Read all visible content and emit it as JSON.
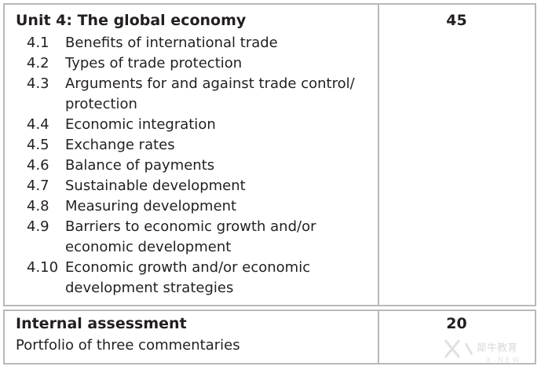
{
  "unit": {
    "title": "Unit 4: The global economy",
    "marks": "45"
  },
  "topics": [
    {
      "num": "4.1",
      "lines": [
        "Benefits of international trade"
      ]
    },
    {
      "num": "4.2",
      "lines": [
        "Types of trade protection"
      ]
    },
    {
      "num": "4.3",
      "lines": [
        "Arguments for and against trade control/",
        "protection"
      ]
    },
    {
      "num": "4.4",
      "lines": [
        "Economic integration"
      ]
    },
    {
      "num": "4.5",
      "lines": [
        "Exchange rates"
      ]
    },
    {
      "num": "4.6",
      "lines": [
        "Balance of payments"
      ]
    },
    {
      "num": "4.7",
      "lines": [
        "Sustainable development"
      ]
    },
    {
      "num": "4.8",
      "lines": [
        "Measuring development"
      ]
    },
    {
      "num": "4.9",
      "lines": [
        "Barriers to economic growth and/or",
        "economic development"
      ]
    },
    {
      "num": "4.10",
      "lines": [
        "Economic growth and/or economic",
        "development strategies"
      ]
    }
  ],
  "assessment": {
    "title": "Internal assessment",
    "description": "Portfolio of three commentaries",
    "marks": "20"
  },
  "watermark": {
    "text": "犀牛教育",
    "subtext": "X-NEW"
  }
}
